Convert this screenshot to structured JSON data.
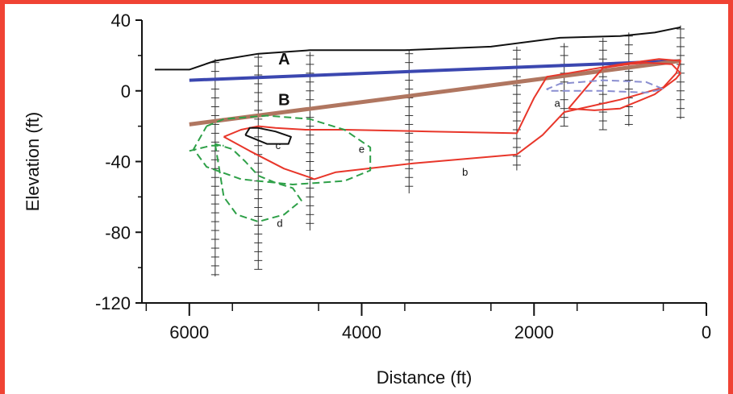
{
  "chart_data": {
    "type": "line",
    "xlabel": "Distance (ft)",
    "ylabel": "Elevation (ft)",
    "xlim": [
      6550,
      0
    ],
    "ylim": [
      -120,
      40
    ],
    "x_ticks": [
      6000,
      4000,
      2000,
      0
    ],
    "y_ticks": [
      40,
      0,
      -40,
      -80,
      -120
    ],
    "annotations": [
      {
        "text": "A",
        "x": 4900,
        "y": 15
      },
      {
        "text": "B",
        "x": 4900,
        "y": -8
      },
      {
        "text": "a",
        "x": 1730,
        "y": -9
      },
      {
        "text": "b",
        "x": 2800,
        "y": -48
      },
      {
        "text": "c",
        "x": 4970,
        "y": -33
      },
      {
        "text": "d",
        "x": 4950,
        "y": -77
      },
      {
        "text": "e",
        "x": 4000,
        "y": -35
      }
    ],
    "series": [
      {
        "id": "ground-surface",
        "color": "#111111",
        "style": "solid",
        "x": [
          6400,
          6000,
          5700,
          5200,
          4600,
          3500,
          2500,
          1700,
          1000,
          600,
          300
        ],
        "y": [
          12,
          12,
          17,
          21,
          23,
          23,
          25,
          30,
          31,
          33,
          36
        ]
      },
      {
        "id": "line-A",
        "color": "#3b47b0",
        "style": "solid",
        "x": [
          6000,
          300
        ],
        "y": [
          6,
          17
        ]
      },
      {
        "id": "line-B",
        "color": "#b07660",
        "style": "solid",
        "x": [
          6000,
          300
        ],
        "y": [
          -19,
          17
        ]
      },
      {
        "id": "contour-b",
        "color": "#e8362a",
        "style": "solid",
        "x": [
          5600,
          5300,
          4900,
          4600,
          4550,
          4300,
          3400,
          2200,
          1900,
          1650,
          1000,
          500,
          350,
          300,
          550,
          1000,
          1600,
          1850,
          2000,
          2200,
          3200,
          4200,
          4650,
          5000,
          5200,
          5400,
          5600
        ],
        "y": [
          -26,
          -34,
          -44,
          -49,
          -50,
          -46,
          -41,
          -36,
          -25,
          -12,
          -5,
          2,
          10,
          17,
          18,
          15,
          10,
          8,
          -4,
          -24,
          -23,
          -22,
          -22,
          -21,
          -20,
          -22,
          -26
        ]
      },
      {
        "id": "contour-a-inner",
        "color": "#e8362a",
        "style": "solid",
        "x": [
          1600,
          1300,
          1000,
          800,
          600,
          350,
          300,
          400,
          700,
          900,
          1200,
          1600
        ],
        "y": [
          -10,
          -11,
          -10,
          -6,
          -2,
          7,
          10,
          15,
          16,
          15,
          13,
          -10
        ]
      },
      {
        "id": "contour-e",
        "color": "#2ea048",
        "style": "dashed",
        "x": [
          5800,
          5600,
          5100,
          4600,
          4200,
          3900,
          3900,
          4200,
          4800,
          5400,
          5800,
          5950,
          5800
        ],
        "y": [
          -20,
          -16,
          -14,
          -16,
          -22,
          -32,
          -45,
          -51,
          -53,
          -50,
          -43,
          -33,
          -20
        ]
      },
      {
        "id": "contour-d",
        "color": "#2ea048",
        "style": "dashed",
        "x": [
          5700,
          5650,
          5600,
          5450,
          5200,
          4900,
          4700,
          4800,
          5000,
          5200,
          5350,
          5500,
          5700
        ],
        "y": [
          -30,
          -45,
          -60,
          -70,
          -74,
          -70,
          -62,
          -55,
          -52,
          -48,
          -40,
          -33,
          -30
        ]
      },
      {
        "id": "contour-e-outer",
        "color": "#2ea048",
        "style": "dashed",
        "x": [
          6000,
          5750,
          5600
        ],
        "y": [
          -34,
          -31,
          -31
        ]
      },
      {
        "id": "contour-c",
        "color": "#111111",
        "style": "solid",
        "x": [
          5350,
          5100,
          4850,
          4820,
          5000,
          5200,
          5300,
          5350
        ],
        "y": [
          -25,
          -30,
          -30,
          -26,
          -23,
          -21,
          -21,
          -25
        ]
      },
      {
        "id": "contour-a-blue",
        "color": "#8a8ed0",
        "style": "dashed",
        "x": [
          1800,
          1200,
          700,
          500,
          700,
          1200,
          1700,
          1850,
          1800
        ],
        "y": [
          0,
          0,
          -1,
          1,
          5,
          6,
          4,
          1,
          0
        ]
      }
    ],
    "borings": [
      {
        "x": 5700,
        "top": 18,
        "bottom": -105
      },
      {
        "x": 5200,
        "top": 21,
        "bottom": -101
      },
      {
        "x": 4600,
        "top": 22,
        "bottom": -79
      },
      {
        "x": 3450,
        "top": 23,
        "bottom": -58
      },
      {
        "x": 2200,
        "top": 25,
        "bottom": -45
      },
      {
        "x": 1650,
        "top": 27,
        "bottom": -20
      },
      {
        "x": 1200,
        "top": 30,
        "bottom": -22
      },
      {
        "x": 900,
        "top": 33,
        "bottom": -20
      },
      {
        "x": 300,
        "top": 37,
        "bottom": -16
      }
    ]
  }
}
